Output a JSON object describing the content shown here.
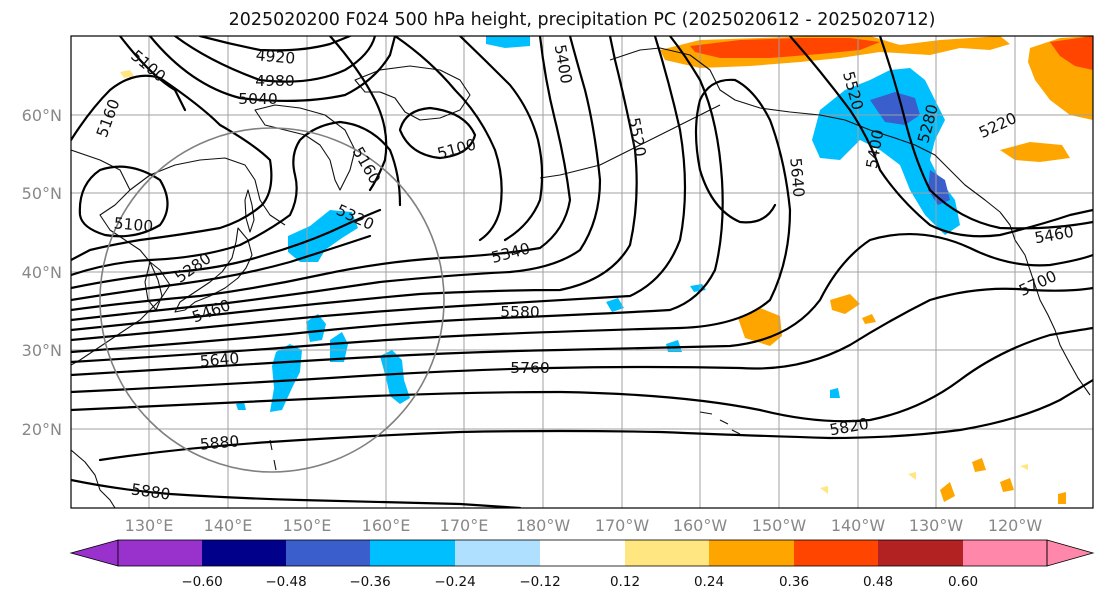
{
  "title": "2025020200 F024 500 hPa height, precipitation PC (2025020612 - 2025020712)",
  "map": {
    "lat_labels": [
      "60°N",
      "50°N",
      "40°N",
      "30°N",
      "20°N"
    ],
    "lon_labels": [
      "130°E",
      "140°E",
      "150°E",
      "160°E",
      "170°E",
      "180°W",
      "170°W",
      "160°W",
      "150°W",
      "140°W",
      "130°W",
      "120°W"
    ],
    "gridline_color": "#a0a0a0",
    "contour_labels": [
      "5100",
      "4920",
      "4980",
      "5040",
      "5160",
      "5100",
      "5160",
      "5400",
      "5520",
      "5640",
      "5520",
      "5400",
      "5280",
      "5220",
      "5100",
      "5320",
      "5340",
      "5280",
      "5460",
      "5580",
      "5640",
      "5760",
      "5880",
      "5880",
      "5820",
      "5460",
      "5700"
    ]
  },
  "colorbar": {
    "ticks": [
      "−0.60",
      "−0.48",
      "−0.36",
      "−0.24",
      "−0.12",
      "0.12",
      "0.24",
      "0.36",
      "0.48",
      "0.60"
    ],
    "colors": [
      "#9932cc",
      "#00008b",
      "#3a5fcd",
      "#00bfff",
      "#b0e0ff",
      "#ffffff",
      "#ffe680",
      "#ffa500",
      "#ff4500",
      "#b22222",
      "#ff88aa"
    ]
  },
  "shading_colors": {
    "neg_light": "#00bfff",
    "neg_mid": "#3a5fcd",
    "pos_light": "#ffe680",
    "pos_mid": "#ffa500",
    "pos_high": "#ff4500"
  }
}
